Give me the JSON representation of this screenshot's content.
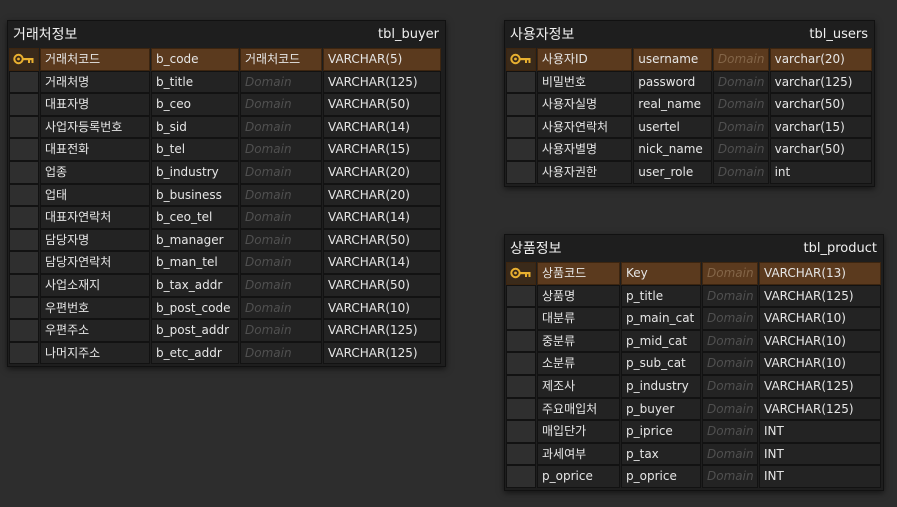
{
  "domain_placeholder": "Domain",
  "tables": {
    "buyer": {
      "name": "거래처정보",
      "physical": "tbl_buyer",
      "rows": [
        {
          "logical": "거래처코드",
          "physical": "b_code",
          "domain": "거래처코드",
          "type": "VARCHAR(5)",
          "pk": true
        },
        {
          "logical": "거래처명",
          "physical": "b_title",
          "domain": "",
          "type": "VARCHAR(125)"
        },
        {
          "logical": "대표자명",
          "physical": "b_ceo",
          "domain": "",
          "type": "VARCHAR(50)"
        },
        {
          "logical": "사업자등록번호",
          "physical": "b_sid",
          "domain": "",
          "type": "VARCHAR(14)"
        },
        {
          "logical": "대표전화",
          "physical": "b_tel",
          "domain": "",
          "type": "VARCHAR(15)"
        },
        {
          "logical": "업종",
          "physical": "b_industry",
          "domain": "",
          "type": "VARCHAR(20)"
        },
        {
          "logical": "업태",
          "physical": "b_business",
          "domain": "",
          "type": "VARCHAR(20)"
        },
        {
          "logical": "대표자연락처",
          "physical": "b_ceo_tel",
          "domain": "",
          "type": "VARCHAR(14)"
        },
        {
          "logical": "담당자명",
          "physical": "b_manager",
          "domain": "",
          "type": "VARCHAR(50)"
        },
        {
          "logical": "담당자연락처",
          "physical": "b_man_tel",
          "domain": "",
          "type": "VARCHAR(14)"
        },
        {
          "logical": "사업소재지",
          "physical": "b_tax_addr",
          "domain": "",
          "type": "VARCHAR(50)"
        },
        {
          "logical": "우편번호",
          "physical": "b_post_code",
          "domain": "",
          "type": "VARCHAR(10)"
        },
        {
          "logical": "우편주소",
          "physical": "b_post_addr",
          "domain": "",
          "type": "VARCHAR(125)"
        },
        {
          "logical": "나머지주소",
          "physical": "b_etc_addr",
          "domain": "",
          "type": "VARCHAR(125)"
        }
      ]
    },
    "users": {
      "name": "사용자정보",
      "physical": "tbl_users",
      "rows": [
        {
          "logical": "사용자ID",
          "physical": "username",
          "domain": "",
          "type": "varchar(20)",
          "pk": true
        },
        {
          "logical": "비밀번호",
          "physical": "password",
          "domain": "",
          "type": "varchar(125)"
        },
        {
          "logical": "사용자실명",
          "physical": "real_name",
          "domain": "",
          "type": "varchar(50)"
        },
        {
          "logical": "사용자연락처",
          "physical": "usertel",
          "domain": "",
          "type": "varchar(15)"
        },
        {
          "logical": "사용자별명",
          "physical": "nick_name",
          "domain": "",
          "type": "varchar(50)"
        },
        {
          "logical": "사용자권한",
          "physical": "user_role",
          "domain": "",
          "type": "int"
        }
      ]
    },
    "product": {
      "name": "상품정보",
      "physical": "tbl_product",
      "rows": [
        {
          "logical": "상품코드",
          "physical": "Key",
          "domain": "",
          "type": "VARCHAR(13)",
          "pk": true
        },
        {
          "logical": "상품명",
          "physical": "p_title",
          "domain": "",
          "type": "VARCHAR(125)"
        },
        {
          "logical": "대분류",
          "physical": "p_main_cat",
          "domain": "",
          "type": "VARCHAR(10)"
        },
        {
          "logical": "중분류",
          "physical": "p_mid_cat",
          "domain": "",
          "type": "VARCHAR(10)"
        },
        {
          "logical": "소분류",
          "physical": "p_sub_cat",
          "domain": "",
          "type": "VARCHAR(10)"
        },
        {
          "logical": "제조사",
          "physical": "p_industry",
          "domain": "",
          "type": "VARCHAR(125)"
        },
        {
          "logical": "주요매입처",
          "physical": "p_buyer",
          "domain": "",
          "type": "VARCHAR(125)"
        },
        {
          "logical": "매입단가",
          "physical": "p_iprice",
          "domain": "",
          "type": "INT"
        },
        {
          "logical": "과세여부",
          "physical": "p_tax",
          "domain": "",
          "type": "INT"
        },
        {
          "logical": "p_oprice",
          "physical": "p_oprice",
          "domain": "",
          "type": "INT"
        }
      ]
    }
  },
  "colors": {
    "canvas": "#2d2d2d",
    "table_bg": "#1e1e1e",
    "pk_row": "#5b3a1e",
    "key_icon": "#e8b030"
  }
}
